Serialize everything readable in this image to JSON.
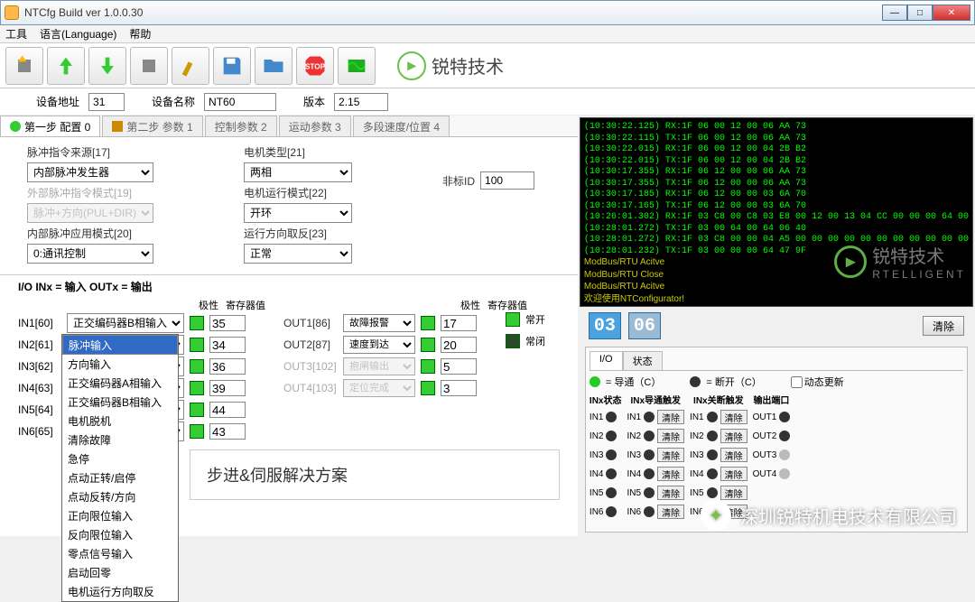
{
  "window": {
    "title": "NTCfg Build ver 1.0.0.30"
  },
  "menu": {
    "tools": "工具",
    "lang": "语言(Language)",
    "help": "帮助"
  },
  "logo": {
    "text": "锐特技术"
  },
  "device": {
    "addr_label": "设备地址",
    "addr": "31",
    "name_label": "设备名称",
    "name": "NT60",
    "ver_label": "版本",
    "ver": "2.15"
  },
  "tabs": {
    "t1": "第一步 配置 0",
    "t2": "第二步 参数 1",
    "t3": "控制参数 2",
    "t4": "运动参数 3",
    "t5": "多段速度/位置 4"
  },
  "cfg": {
    "pulse_src_label": "脉冲指令来源[17]",
    "pulse_src": "内部脉冲发生器",
    "ext_pulse_label": "外部脉冲指令模式[19]",
    "ext_pulse": "脉冲+方向(PUL+DIR)",
    "int_pulse_label": "内部脉冲应用模式[20]",
    "int_pulse": "0:通讯控制",
    "motor_type_label": "电机类型[21]",
    "motor_type": "两相",
    "motor_run_label": "电机运行模式[22]",
    "motor_run": "开环",
    "dir_rev_label": "运行方向取反[23]",
    "dir_rev": "正常",
    "nonstd_label": "非标ID",
    "nonstd": "100"
  },
  "io": {
    "header": "I/O INx = 输入 OUTx = 输出",
    "col_polar": "极性",
    "col_reg": "寄存器值",
    "normally_open": "常开",
    "normally_closed": "常闭",
    "in": [
      {
        "lbl": "IN1[60]",
        "sel": "正交编码器B相输入",
        "reg": "35"
      },
      {
        "lbl": "IN2[61]",
        "sel": "",
        "reg": "34"
      },
      {
        "lbl": "IN3[62]",
        "sel": "",
        "reg": "36"
      },
      {
        "lbl": "IN4[63]",
        "sel": "",
        "reg": "39"
      },
      {
        "lbl": "IN5[64]",
        "sel": "",
        "reg": "44"
      },
      {
        "lbl": "IN6[65]",
        "sel": "",
        "reg": "43"
      }
    ],
    "out": [
      {
        "lbl": "OUT1[86]",
        "sel": "故障报警",
        "reg": "17",
        "dis": false
      },
      {
        "lbl": "OUT2[87]",
        "sel": "速度到达",
        "reg": "20",
        "dis": false
      },
      {
        "lbl": "OUT3[102]",
        "sel": "抱闸输出",
        "reg": "5",
        "dis": true
      },
      {
        "lbl": "OUT4[103]",
        "sel": "定位完成",
        "reg": "3",
        "dis": true
      }
    ],
    "dropdown": [
      "脉冲输入",
      "方向输入",
      "正交编码器A相输入",
      "正交编码器B相输入",
      "电机脱机",
      "清除故障",
      "急停",
      "点动正转/启停",
      "点动反转/方向",
      "正向限位输入",
      "反向限位输入",
      "零点信号输入",
      "启动回零",
      "电机运行方向取反"
    ]
  },
  "banner": "步进&伺服解决方案",
  "terminal": {
    "lines": [
      "(10:30:22.125) RX:1F 06 00 12 00 06 AA 73",
      "(10:30:22.115) TX:1F 06 00 12 00 06 AA 73",
      "(10:30:22.015) RX:1F 06 00 12 00 04 2B B2",
      "(10:30:22.015) TX:1F 06 00 12 00 04 2B B2",
      "(10:30:17.355) RX:1F 06 12 00 00 06 AA 73",
      "(10:30:17.355) TX:1F 06 12 00 00 06 AA 73",
      "(10:30:17.185) RX:1F 06 12 00 00 03 6A 70",
      "(10:30:17.165) TX:1F 06 12 00 00 03 6A 70",
      "(10:26:01.302) RX:1F 03 C8 00 C8 03 E8 00 12 00 13 04 CC 00 00 00 64 00",
      "(10:28:01.272) TX:1F 03 00 64 00 64 06 40",
      "(10:28:01.272) RX:1F 03 C8 00 00 04 A5 00 00 00 00 00 00 00 00 00 00 00",
      "(10:28:01.232) TX:1F 03 00 00 00 64 47 9F"
    ],
    "status": [
      "ModBus/RTU Acitve",
      "ModBus/RTU Close",
      "ModBus/RTU Acitve",
      "欢迎使用NTConfigurator!"
    ]
  },
  "digits": {
    "d1": "03",
    "d2": "06",
    "clear": "清除"
  },
  "iostatus": {
    "tab_io": "I/O",
    "tab_state": "状态",
    "on": "= 导通（C）",
    "off": "= 断开（C）",
    "dyn": "动态更新",
    "h1": "INx状态",
    "h2": "INx导通触发",
    "h3": "INx关断触发",
    "h4": "输出端口",
    "rows": [
      "IN1",
      "IN2",
      "IN3",
      "IN4",
      "IN5",
      "IN6"
    ],
    "outs": [
      "OUT1",
      "OUT2",
      "OUT3",
      "OUT4"
    ],
    "clear_btn": "清除"
  },
  "watermark": {
    "brand": "锐特技术",
    "en": "RTELLIGENT"
  },
  "wx": "深圳锐特机电技术有限公司"
}
